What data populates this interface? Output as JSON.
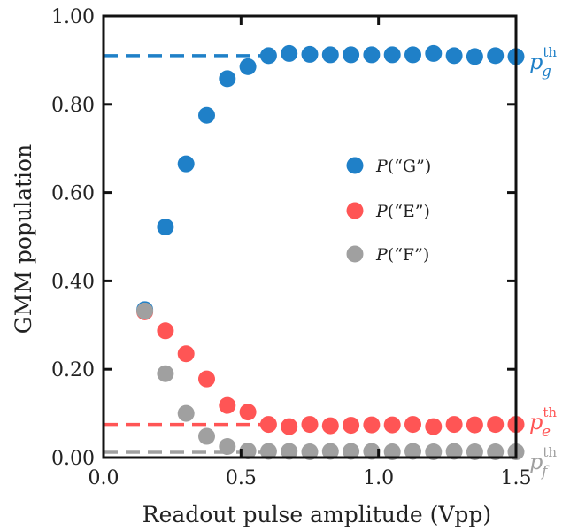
{
  "chart_data": {
    "type": "scatter",
    "xlabel": "Readout pulse amplitude (Vpp)",
    "ylabel": "GMM population",
    "xlim": [
      0.0,
      1.5
    ],
    "ylim": [
      0.0,
      1.0
    ],
    "x_ticks": [
      "0.0",
      "0.5",
      "1.0",
      "1.5"
    ],
    "y_ticks": [
      "0.00",
      "0.20",
      "0.40",
      "0.60",
      "0.80",
      "1.00"
    ],
    "x_tick_values": [
      0.0,
      0.5,
      1.0,
      1.5
    ],
    "y_tick_values": [
      0.0,
      0.2,
      0.4,
      0.6,
      0.8,
      1.0
    ],
    "x": [
      0.15,
      0.225,
      0.3,
      0.375,
      0.45,
      0.525,
      0.6,
      0.675,
      0.75,
      0.825,
      0.9,
      0.975,
      1.05,
      1.125,
      1.2,
      1.275,
      1.35,
      1.425,
      1.5
    ],
    "series": [
      {
        "name": "P(“G”)",
        "legend_prefix": "P",
        "legend_suffix": "(“G”)",
        "color": "#1f80c8",
        "values": [
          0.335,
          0.522,
          0.665,
          0.775,
          0.858,
          0.885,
          0.91,
          0.915,
          0.913,
          0.912,
          0.912,
          0.912,
          0.912,
          0.912,
          0.915,
          0.91,
          0.908,
          0.91,
          0.908
        ]
      },
      {
        "name": "P(“E”)",
        "legend_prefix": "P",
        "legend_suffix": "(“E”)",
        "color": "#ff5555",
        "values": [
          0.33,
          0.287,
          0.235,
          0.178,
          0.118,
          0.103,
          0.075,
          0.07,
          0.075,
          0.072,
          0.073,
          0.074,
          0.074,
          0.075,
          0.07,
          0.075,
          0.074,
          0.075,
          0.075
        ]
      },
      {
        "name": "P(“F”)",
        "legend_prefix": "P",
        "legend_suffix": "(“F”)",
        "color": "#a0a0a0",
        "values": [
          0.332,
          0.19,
          0.1,
          0.048,
          0.025,
          0.015,
          0.014,
          0.014,
          0.013,
          0.014,
          0.014,
          0.014,
          0.013,
          0.014,
          0.013,
          0.014,
          0.013,
          0.013,
          0.013
        ]
      }
    ],
    "thresholds": [
      {
        "value": 0.91,
        "color": "#1f80c8",
        "base": "p",
        "sub": "g",
        "sup": "th"
      },
      {
        "value": 0.075,
        "color": "#ff5555",
        "base": "p",
        "sub": "e",
        "sup": "th"
      },
      {
        "value": 0.012,
        "color": "#a0a0a0",
        "base": "p",
        "sub": "f",
        "sup": "th"
      }
    ],
    "grid": false,
    "legend_position": "center-right"
  }
}
